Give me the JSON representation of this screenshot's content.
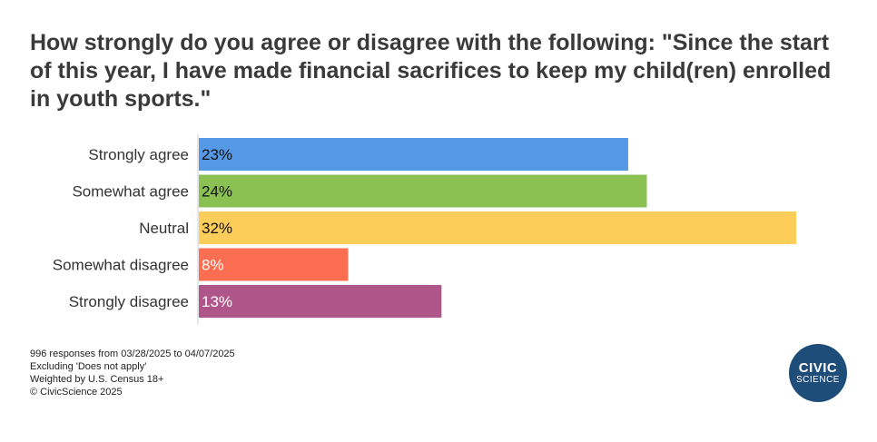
{
  "chart_data": {
    "type": "bar",
    "orientation": "horizontal",
    "title": "How strongly do you agree or disagree with the following: \"Since the start of this year, I have made financial sacrifices to keep my child(ren) enrolled in youth sports.\"",
    "categories": [
      "Strongly agree",
      "Somewhat agree",
      "Neutral",
      "Somewhat disagree",
      "Strongly disagree"
    ],
    "values": [
      23,
      24,
      32,
      8,
      13
    ],
    "value_labels": [
      "23%",
      "24%",
      "32%",
      "8%",
      "13%"
    ],
    "colors": [
      "#5598e6",
      "#8bc152",
      "#fdcd59",
      "#fc6e51",
      "#b05589"
    ],
    "label_colors": [
      "#111111",
      "#111111",
      "#111111",
      "#ffffff",
      "#ffffff"
    ],
    "xlim": [
      0,
      32
    ],
    "grid": false,
    "legend": "none"
  },
  "footnotes": [
    "996 responses from 03/28/2025 to 04/07/2025",
    "Excluding 'Does not apply'",
    "Weighted by U.S. Census 18+",
    "© CivicScience 2025"
  ],
  "logo": {
    "line1": "CIVIC",
    "line2": "SCIENCE",
    "color": "#1f4d7a"
  }
}
